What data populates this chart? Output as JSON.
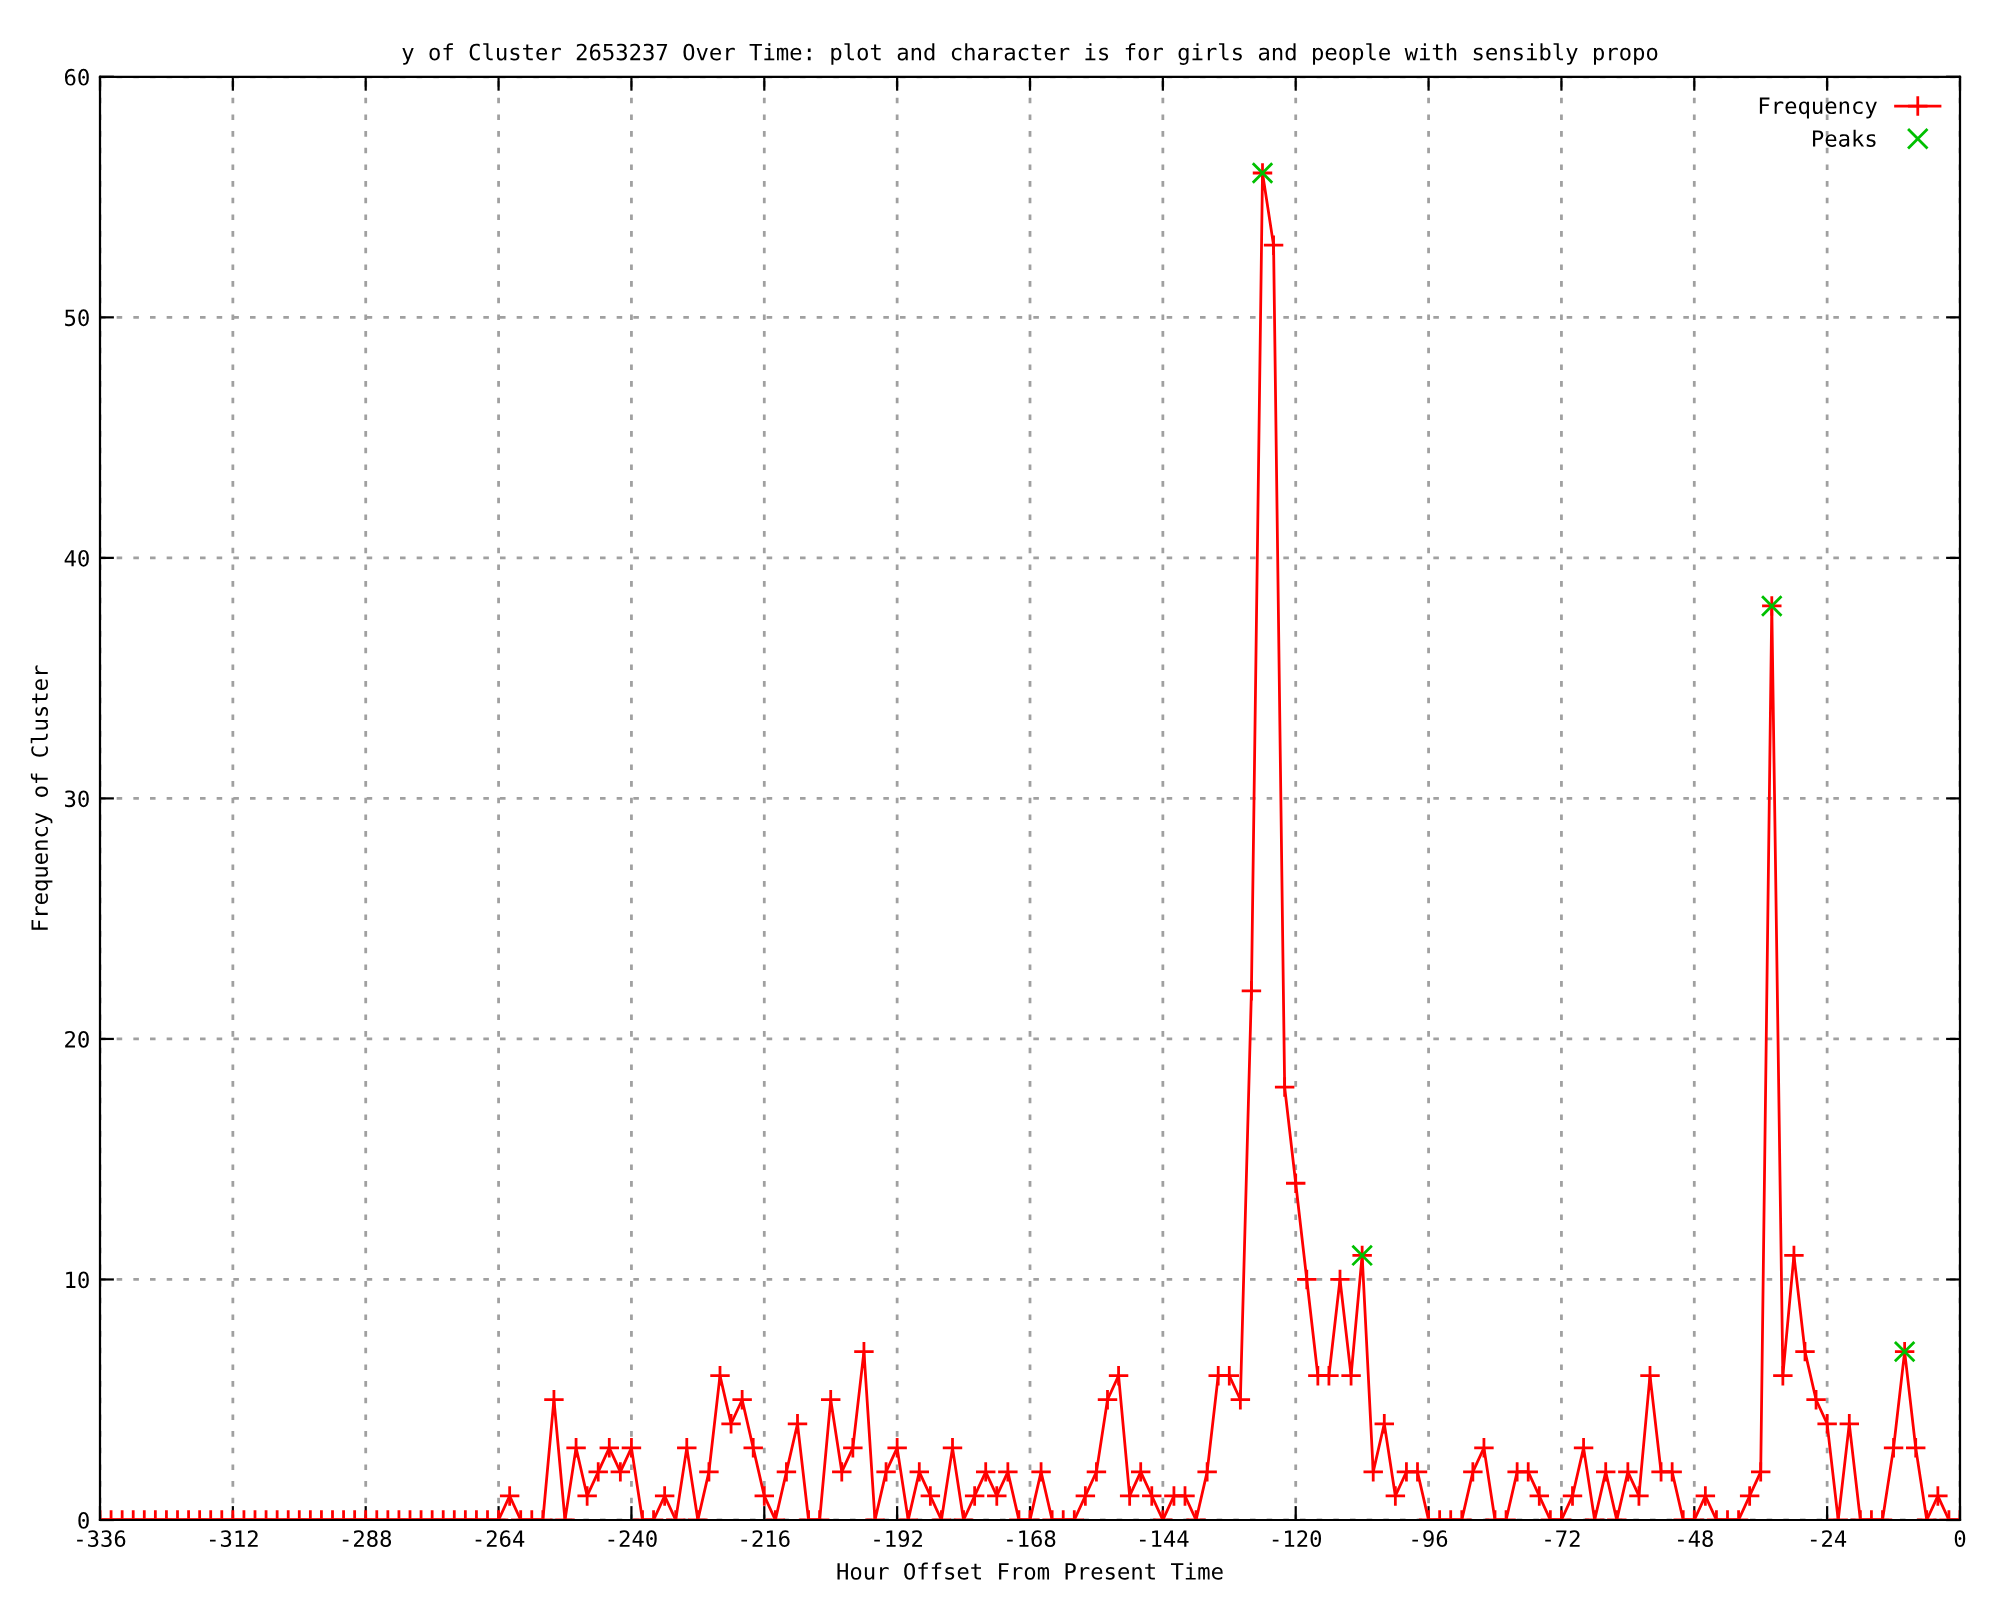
{
  "chart_data": {
    "type": "line",
    "title": "y of Cluster 2653237 Over Time: plot and character is for girls and people with sensibly propo",
    "xlabel": "Hour Offset From Present Time",
    "ylabel": "Frequency of Cluster",
    "x": [
      -336,
      -334,
      -332,
      -330,
      -328,
      -326,
      -324,
      -322,
      -320,
      -318,
      -316,
      -314,
      -312,
      -310,
      -308,
      -306,
      -304,
      -302,
      -300,
      -298,
      -296,
      -294,
      -292,
      -290,
      -288,
      -286,
      -284,
      -282,
      -280,
      -278,
      -276,
      -274,
      -272,
      -270,
      -268,
      -266,
      -264,
      -262,
      -260,
      -258,
      -256,
      -254,
      -252,
      -250,
      -248,
      -246,
      -244,
      -242,
      -240,
      -238,
      -236,
      -234,
      -232,
      -230,
      -228,
      -226,
      -224,
      -222,
      -220,
      -218,
      -216,
      -214,
      -212,
      -210,
      -208,
      -206,
      -204,
      -202,
      -200,
      -198,
      -196,
      -194,
      -192,
      -190,
      -188,
      -186,
      -184,
      -182,
      -180,
      -178,
      -176,
      -174,
      -172,
      -170,
      -168,
      -166,
      -164,
      -162,
      -160,
      -158,
      -156,
      -154,
      -152,
      -150,
      -148,
      -146,
      -144,
      -142,
      -140,
      -138,
      -136,
      -134,
      -132,
      -130,
      -128,
      -126,
      -124,
      -122,
      -120,
      -118,
      -116,
      -114,
      -112,
      -110,
      -108,
      -106,
      -104,
      -102,
      -100,
      -98,
      -96,
      -94,
      -92,
      -90,
      -88,
      -86,
      -84,
      -82,
      -80,
      -78,
      -76,
      -74,
      -72,
      -70,
      -68,
      -66,
      -64,
      -62,
      -60,
      -58,
      -56,
      -54,
      -52,
      -50,
      -48,
      -46,
      -44,
      -42,
      -40,
      -38,
      -36,
      -34,
      -32,
      -30,
      -28,
      -26,
      -24,
      -22,
      -20,
      -18,
      -16,
      -14,
      -12,
      -10,
      -8,
      -6,
      -4,
      -2,
      0
    ],
    "series": [
      {
        "name": "Frequency",
        "color": "#ff0000",
        "marker": "cross",
        "values": [
          0,
          0,
          0,
          0,
          0,
          0,
          0,
          0,
          0,
          0,
          0,
          0,
          0,
          0,
          0,
          0,
          0,
          0,
          0,
          0,
          0,
          0,
          0,
          0,
          0,
          0,
          0,
          0,
          0,
          0,
          0,
          0,
          0,
          0,
          0,
          0,
          0,
          1,
          0,
          0,
          0,
          5,
          0,
          3,
          1,
          2,
          3,
          2,
          3,
          0,
          0,
          1,
          0,
          3,
          0,
          2,
          6,
          4,
          5,
          3,
          1,
          0,
          2,
          4,
          0,
          0,
          5,
          2,
          3,
          7,
          0,
          2,
          3,
          0,
          2,
          1,
          0,
          3,
          0,
          1,
          2,
          1,
          2,
          0,
          0,
          2,
          0,
          0,
          0,
          1,
          2,
          5,
          6,
          1,
          2,
          1,
          0,
          1,
          1,
          0,
          2,
          6,
          6,
          5,
          22,
          56,
          53,
          18,
          14,
          10,
          6,
          6,
          10,
          6,
          11,
          2,
          4,
          1,
          2,
          2,
          0,
          0,
          0,
          0,
          2,
          3,
          0,
          0,
          2,
          2,
          1,
          0,
          0,
          1,
          3,
          0,
          2,
          0,
          2,
          1,
          6,
          2,
          2,
          0,
          0,
          1,
          0,
          0,
          0,
          1,
          2,
          38,
          6,
          11,
          7,
          5,
          4,
          0,
          4,
          0,
          0,
          0,
          3,
          7,
          3,
          0,
          1,
          0,
          0
        ]
      },
      {
        "name": "Peaks",
        "color": "#00c000",
        "type": "scatter",
        "marker": "x",
        "x": [
          -126,
          -108,
          -34,
          -10
        ],
        "values": [
          56,
          11,
          38,
          7
        ]
      }
    ],
    "xlim": [
      -336,
      0
    ],
    "ylim": [
      0,
      60
    ],
    "xticks": [
      -336,
      -312,
      -288,
      -264,
      -240,
      -216,
      -192,
      -168,
      -144,
      -120,
      -96,
      -72,
      -48,
      -24,
      0
    ],
    "yticks": [
      0,
      10,
      20,
      30,
      40,
      50,
      60
    ],
    "grid": true,
    "legend": "top right"
  }
}
